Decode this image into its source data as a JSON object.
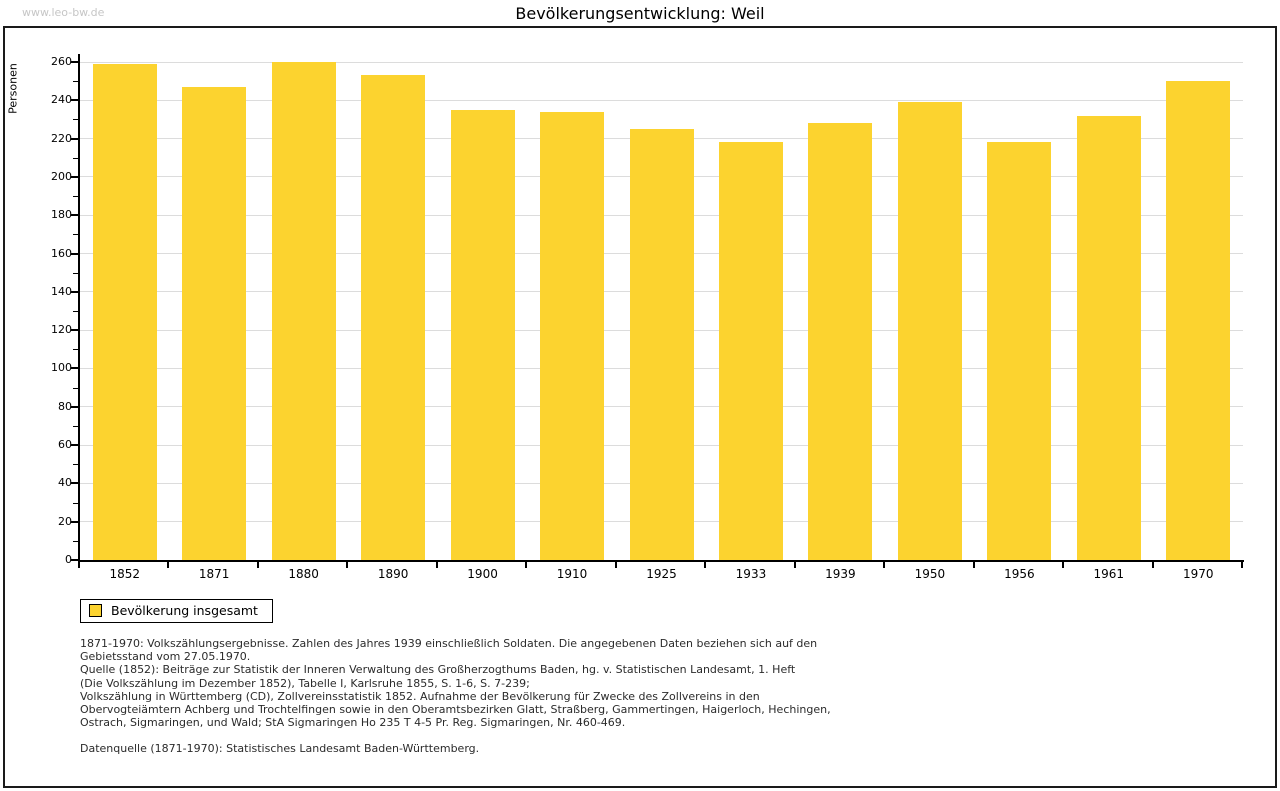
{
  "watermark": "www.leo-bw.de",
  "header": {
    "title": "Bevölkerungsentwicklung: Weil"
  },
  "chart_data": {
    "type": "bar",
    "title": "Bevölkerungsentwicklung: Weil",
    "xlabel": "",
    "ylabel": "Personen",
    "categories": [
      "1852",
      "1871",
      "1880",
      "1890",
      "1900",
      "1910",
      "1925",
      "1933",
      "1939",
      "1950",
      "1956",
      "1961",
      "1970"
    ],
    "values": [
      259,
      247,
      260,
      253,
      235,
      234,
      225,
      218,
      228,
      239,
      218,
      232,
      250
    ],
    "series_name": "Bevölkerung insgesamt",
    "ylim": [
      0,
      260
    ],
    "ytick_major": 20,
    "ytick_minor": 10,
    "grid": true,
    "legend_position": "bottom-left",
    "bar_color": "#fcd32f"
  },
  "legend": {
    "label": "Bevölkerung insgesamt"
  },
  "footnotes": {
    "lines": [
      "1871-1970: Volkszählungsergebnisse. Zahlen des Jahres 1939 einschließlich Soldaten. Die angegebenen Daten beziehen sich auf den",
      "Gebietsstand vom 27.05.1970.",
      "Quelle (1852): Beiträge zur Statistik der Inneren Verwaltung des Großherzogthums Baden, hg. v. Statistischen Landesamt, 1. Heft",
      "(Die Volkszählung im Dezember 1852), Tabelle I, Karlsruhe 1855, S. 1-6, S. 7-239;",
      "Volkszählung in Württemberg (CD), Zollvereinsstatistik 1852. Aufnahme der Bevölkerung für Zwecke des Zollvereins in den",
      "Obervogteiämtern Achberg und Trochtelfingen sowie in den Oberamtsbezirken Glatt, Straßberg, Gammertingen, Haigerloch, Hechingen,",
      "Ostrach, Sigmaringen, und Wald; StA Sigmaringen Ho 235 T 4-5 Pr. Reg. Sigmaringen, Nr. 460-469."
    ],
    "data_source": "Datenquelle (1871-1970): Statistisches Landesamt Baden-Württemberg."
  },
  "colors": {
    "bar": "#fcd32f",
    "gridline": "#dcdcdc",
    "axis": "#000000",
    "watermark": "#c6c6c6",
    "border": "#1a1a1a",
    "footnote_text": "#2b2b2b"
  }
}
